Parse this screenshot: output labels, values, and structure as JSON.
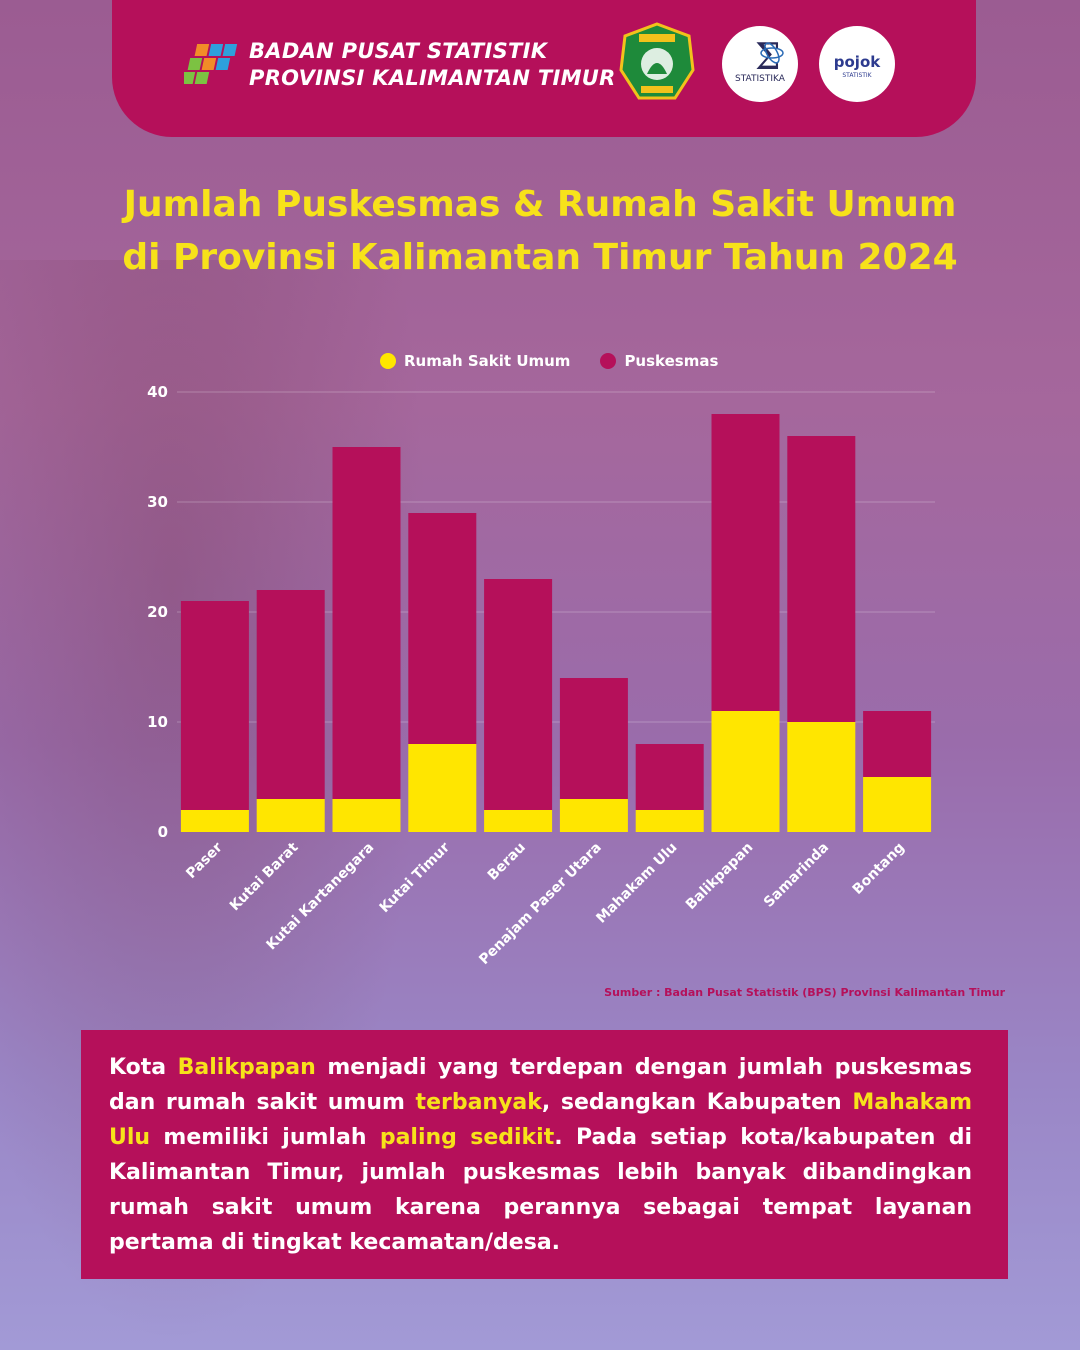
{
  "header": {
    "org_line1": "BADAN PUSAT STATISTIK",
    "org_line2": "PROVINSI KALIMANTAN TIMUR",
    "logo_statistika_label": "STATISTIKA",
    "logo_pojok_label": "pojok",
    "logo_pojok_sub": "STATISTIK"
  },
  "title": {
    "line1": "Jumlah Puskesmas & Rumah Sakit Umum",
    "line2": "di Provinsi Kalimantan Timur Tahun 2024"
  },
  "colors": {
    "magenta": "#b5105a",
    "yellow": "#f7e21a",
    "rumah_sakit": "#ffe600",
    "puskesmas": "#b5105a"
  },
  "chart_data": {
    "type": "bar",
    "stacked": true,
    "categories": [
      "Paser",
      "Kutai Barat",
      "Kutai Kartanegara",
      "Kutai Timur",
      "Berau",
      "Penajam Paser Utara",
      "Mahakam Ulu",
      "Balikpapan",
      "Samarinda",
      "Bontang"
    ],
    "series": [
      {
        "name": "Rumah Sakit Umum",
        "color": "#ffe600",
        "values": [
          2,
          3,
          3,
          8,
          2,
          3,
          2,
          11,
          10,
          5
        ]
      },
      {
        "name": "Puskesmas",
        "color": "#b5105a",
        "values": [
          19,
          19,
          32,
          21,
          21,
          11,
          6,
          27,
          26,
          6
        ]
      }
    ],
    "ylim": [
      0,
      40
    ],
    "yticks": [
      0,
      10,
      20,
      30,
      40
    ],
    "grid": true,
    "legend": "top-center"
  },
  "source": "Sumber : Badan Pusat Statistik (BPS) Provinsi Kalimantan Timur",
  "description": {
    "p1": "Kota ",
    "h1": "Balikpapan",
    "p2": " menjadi yang terdepan dengan jumlah puskesmas dan rumah sakit umum ",
    "h2": "terbanyak",
    "p3": ", sedangkan Kabupaten ",
    "h3": "Mahakam Ulu",
    "p4": " memiliki jumlah ",
    "h4": "paling sedikit",
    "p5": ". Pada setiap kota/kabupaten di Kalimantan Timur, jumlah puskesmas lebih banyak dibandingkan rumah sakit umum karena perannya sebagai tempat layanan pertama di tingkat kecamatan/desa."
  }
}
